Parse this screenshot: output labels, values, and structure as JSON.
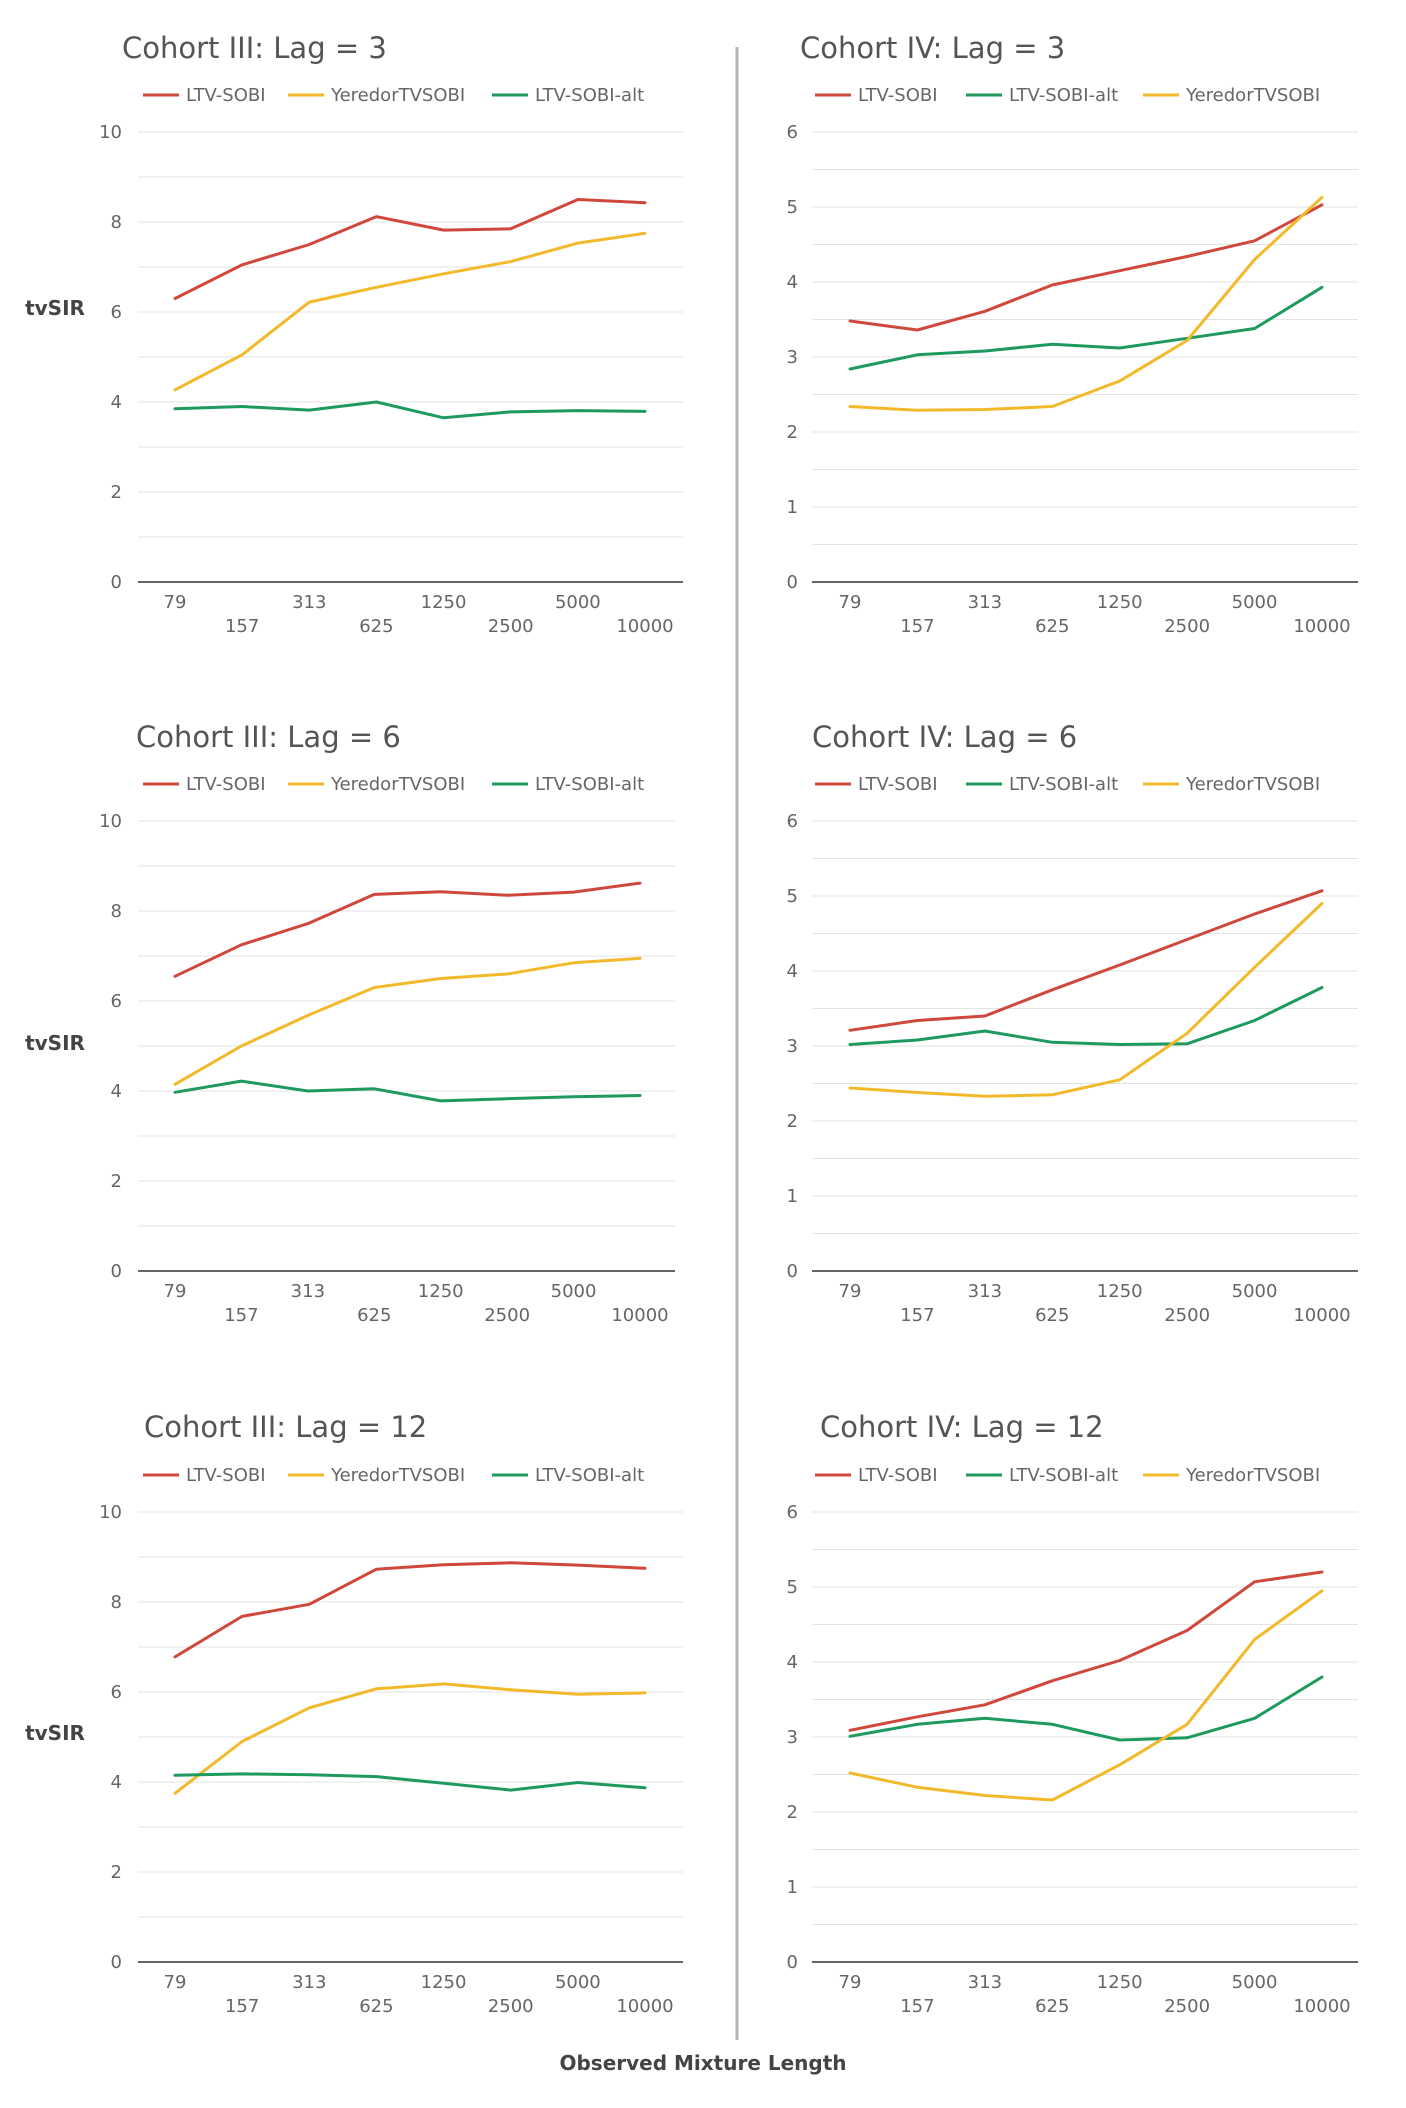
{
  "chart_data": [
    {
      "type": "line",
      "title": "Cohort III: Lag = 3",
      "ylabel": "tvSIR",
      "ylim": [
        0,
        10
      ],
      "yticks": [
        0,
        2,
        4,
        6,
        8,
        10
      ],
      "categories": [
        "79",
        "157",
        "313",
        "625",
        "1250",
        "2500",
        "5000",
        "10000"
      ],
      "series": [
        {
          "name": "LTV-SOBI",
          "color": "#d0473c",
          "values": [
            6.3,
            7.05,
            7.5,
            8.12,
            7.82,
            7.85,
            8.5,
            8.43
          ]
        },
        {
          "name": "YeredorTVSOBI",
          "color": "#f2b92b",
          "values": [
            4.27,
            5.05,
            6.22,
            6.55,
            6.85,
            7.12,
            7.53,
            7.75
          ]
        },
        {
          "name": "LTV-SOBI-alt",
          "color": "#1f9a5e",
          "values": [
            3.85,
            3.9,
            3.82,
            4.0,
            3.65,
            3.78,
            3.81,
            3.79
          ]
        }
      ]
    },
    {
      "type": "line",
      "title": "Cohort IV: Lag = 3",
      "ylabel": "",
      "ylim": [
        0,
        6
      ],
      "yticks": [
        0,
        1,
        2,
        3,
        4,
        5,
        6
      ],
      "categories": [
        "79",
        "157",
        "313",
        "625",
        "1250",
        "2500",
        "5000",
        "10000"
      ],
      "series": [
        {
          "name": "LTV-SOBI",
          "color": "#d0473c",
          "values": [
            3.48,
            3.36,
            3.61,
            3.96,
            4.15,
            4.34,
            4.55,
            5.03
          ]
        },
        {
          "name": "LTV-SOBI-alt",
          "color": "#1f9a5e",
          "values": [
            2.84,
            3.03,
            3.08,
            3.17,
            3.12,
            3.25,
            3.38,
            3.93
          ]
        },
        {
          "name": "YeredorTVSOBI",
          "color": "#f2b92b",
          "values": [
            2.34,
            2.29,
            2.3,
            2.34,
            2.68,
            3.22,
            4.3,
            5.13
          ]
        }
      ]
    },
    {
      "type": "line",
      "title": "Cohort III: Lag = 6",
      "ylabel": "tvSIR",
      "ylim": [
        0,
        10
      ],
      "yticks": [
        0,
        2,
        4,
        6,
        8,
        10
      ],
      "categories": [
        "79",
        "157",
        "313",
        "625",
        "1250",
        "2500",
        "5000",
        "10000"
      ],
      "series": [
        {
          "name": "LTV-SOBI",
          "color": "#d0473c",
          "values": [
            6.55,
            7.25,
            7.72,
            8.37,
            8.43,
            8.35,
            8.42,
            8.62
          ]
        },
        {
          "name": "YeredorTVSOBI",
          "color": "#f2b92b",
          "values": [
            4.15,
            5.0,
            5.68,
            6.3,
            6.5,
            6.6,
            6.85,
            6.95
          ]
        },
        {
          "name": "LTV-SOBI-alt",
          "color": "#1f9a5e",
          "values": [
            3.97,
            4.22,
            4.0,
            4.05,
            3.78,
            3.83,
            3.87,
            3.9
          ]
        }
      ]
    },
    {
      "type": "line",
      "title": "Cohort IV: Lag = 6",
      "ylabel": "",
      "ylim": [
        0,
        6
      ],
      "yticks": [
        0,
        1,
        2,
        3,
        4,
        5,
        6
      ],
      "categories": [
        "79",
        "157",
        "313",
        "625",
        "1250",
        "2500",
        "5000",
        "10000"
      ],
      "series": [
        {
          "name": "LTV-SOBI",
          "color": "#d0473c",
          "values": [
            3.21,
            3.34,
            3.4,
            3.75,
            4.08,
            4.42,
            4.76,
            5.07
          ]
        },
        {
          "name": "LTV-SOBI-alt",
          "color": "#1f9a5e",
          "values": [
            3.02,
            3.08,
            3.2,
            3.05,
            3.02,
            3.03,
            3.34,
            3.78
          ]
        },
        {
          "name": "YeredorTVSOBI",
          "color": "#f2b92b",
          "values": [
            2.44,
            2.38,
            2.33,
            2.35,
            2.55,
            3.17,
            4.05,
            4.9
          ]
        }
      ]
    },
    {
      "type": "line",
      "title": "Cohort III: Lag = 12",
      "ylabel": "tvSIR",
      "ylim": [
        0,
        10
      ],
      "yticks": [
        0,
        2,
        4,
        6,
        8,
        10
      ],
      "categories": [
        "79",
        "157",
        "313",
        "625",
        "1250",
        "2500",
        "5000",
        "10000"
      ],
      "series": [
        {
          "name": "LTV-SOBI",
          "color": "#d0473c",
          "values": [
            6.78,
            7.68,
            7.95,
            8.73,
            8.83,
            8.87,
            8.82,
            8.75
          ]
        },
        {
          "name": "YeredorTVSOBI",
          "color": "#f2b92b",
          "values": [
            3.75,
            4.9,
            5.65,
            6.07,
            6.18,
            6.05,
            5.95,
            5.98
          ]
        },
        {
          "name": "LTV-SOBI-alt",
          "color": "#1f9a5e",
          "values": [
            4.15,
            4.18,
            4.16,
            4.12,
            3.97,
            3.82,
            3.99,
            3.87
          ]
        }
      ]
    },
    {
      "type": "line",
      "title": "Cohort IV: Lag = 12",
      "ylabel": "",
      "ylim": [
        0,
        6
      ],
      "yticks": [
        0,
        1,
        2,
        3,
        4,
        5,
        6
      ],
      "categories": [
        "79",
        "157",
        "313",
        "625",
        "1250",
        "2500",
        "5000",
        "10000"
      ],
      "series": [
        {
          "name": "LTV-SOBI",
          "color": "#d0473c",
          "values": [
            3.09,
            3.27,
            3.43,
            3.75,
            4.02,
            4.42,
            5.07,
            5.2
          ]
        },
        {
          "name": "LTV-SOBI-alt",
          "color": "#1f9a5e",
          "values": [
            3.01,
            3.17,
            3.25,
            3.17,
            2.96,
            2.99,
            3.25,
            3.8
          ]
        },
        {
          "name": "YeredorTVSOBI",
          "color": "#f2b92b",
          "values": [
            2.52,
            2.33,
            2.22,
            2.16,
            2.63,
            3.17,
            4.3,
            4.95
          ]
        }
      ]
    }
  ],
  "shared_xlabel": "Observed Mixture Length"
}
